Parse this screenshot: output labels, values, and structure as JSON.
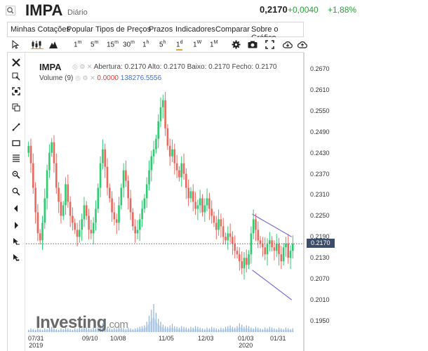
{
  "header": {
    "ticker": "IMPA",
    "period": "Diário",
    "price": "0,2170",
    "change": "+0,0040",
    "change_pct": "+1,88%",
    "change_color": "#27a038"
  },
  "menu": [
    "Minhas Cotações",
    "Popular",
    "Tipos de Preços",
    "Prazos",
    "Indicadores",
    "Comparar",
    "Sobre o Gráfico"
  ],
  "toolbar": {
    "intervals": [
      {
        "num": "1",
        "unit": "m"
      },
      {
        "num": "5",
        "unit": "m"
      },
      {
        "num": "15",
        "unit": "m"
      },
      {
        "num": "30",
        "unit": "m"
      },
      {
        "num": "1",
        "unit": "h"
      },
      {
        "num": "5",
        "unit": "h"
      },
      {
        "num": "1",
        "unit": "d"
      },
      {
        "num": "1",
        "unit": "W"
      },
      {
        "num": "1",
        "unit": "M"
      }
    ],
    "active_interval": "1d"
  },
  "sidebar_icons": [
    "close-icon",
    "crosshair-zoom-icon",
    "fullscreen-icon",
    "copy-icon",
    "trendline-icon",
    "rectangle-icon",
    "fibonacci-icon",
    "measure-icon",
    "zoom-in-icon",
    "zoom-out-icon",
    "arrow-left-icon",
    "arrow-right-icon",
    "cursor-icon",
    "cursor-reset-icon"
  ],
  "legend": {
    "symbol": "IMPA",
    "ohlc": "Abertura: 0.2170  Alto: 0.2170  Baixo: 0.2170  Fecho: 0.2170",
    "volume_label": "Volume (9)",
    "volume_value1": "0.0000",
    "volume_value2": "138276.5556"
  },
  "price_tag": "0.2170",
  "watermark": {
    "brand": "Investing",
    "suffix": ".com"
  },
  "chart_data": {
    "type": "candlestick",
    "y_ticks": [
      "0.2670",
      "0.2610",
      "0.2550",
      "0.2490",
      "0.2430",
      "0.2370",
      "0.2310",
      "0.2250",
      "0.2190",
      "0.2130",
      "0.2070",
      "0.2010",
      "0.1950"
    ],
    "ylim": [
      0.193,
      0.27
    ],
    "x_ticks": [
      {
        "label": "07/31",
        "sub": "2019"
      },
      {
        "label": "09/10",
        "sub": ""
      },
      {
        "label": "10/08",
        "sub": ""
      },
      {
        "label": "11/05",
        "sub": ""
      },
      {
        "label": "12/03",
        "sub": ""
      },
      {
        "label": "01/03",
        "sub": "2020"
      },
      {
        "label": "01/31",
        "sub": ""
      }
    ],
    "last_price": 0.217,
    "up_color": "#2ecc71",
    "down_color": "#e8695f",
    "closes": [
      0.245,
      0.24,
      0.233,
      0.226,
      0.22,
      0.218,
      0.223,
      0.23,
      0.238,
      0.243,
      0.246,
      0.24,
      0.233,
      0.229,
      0.225,
      0.228,
      0.234,
      0.229,
      0.225,
      0.223,
      0.221,
      0.219,
      0.221,
      0.224,
      0.228,
      0.225,
      0.221,
      0.22,
      0.223,
      0.227,
      0.233,
      0.24,
      0.244,
      0.239,
      0.233,
      0.23,
      0.226,
      0.224,
      0.223,
      0.228,
      0.233,
      0.238,
      0.235,
      0.23,
      0.226,
      0.222,
      0.22,
      0.221,
      0.224,
      0.227,
      0.23,
      0.234,
      0.238,
      0.242,
      0.244,
      0.247,
      0.252,
      0.256,
      0.258,
      0.25,
      0.245,
      0.242,
      0.244,
      0.24,
      0.238,
      0.236,
      0.24,
      0.237,
      0.233,
      0.23,
      0.232,
      0.229,
      0.227,
      0.228,
      0.23,
      0.226,
      0.228,
      0.23,
      0.227,
      0.225,
      0.223,
      0.221,
      0.224,
      0.222,
      0.219,
      0.218,
      0.22,
      0.219,
      0.217,
      0.215,
      0.214,
      0.212,
      0.21,
      0.213,
      0.211,
      0.214,
      0.22,
      0.224,
      0.221,
      0.218,
      0.217,
      0.216,
      0.214,
      0.217,
      0.218,
      0.216,
      0.215,
      0.217,
      0.214,
      0.212,
      0.216,
      0.217,
      0.213,
      0.215,
      0.217
    ],
    "volumes": [
      3,
      5,
      4,
      3,
      6,
      4,
      3,
      5,
      4,
      6,
      7,
      5,
      4,
      3,
      5,
      4,
      6,
      5,
      4,
      3,
      5,
      4,
      6,
      5,
      7,
      6,
      5,
      4,
      6,
      5,
      7,
      9,
      12,
      8,
      6,
      5,
      4,
      6,
      5,
      7,
      6,
      5,
      4,
      6,
      5,
      4,
      5,
      6,
      7,
      8,
      9,
      14,
      22,
      30,
      38,
      26,
      18,
      14,
      10,
      8,
      7,
      9,
      11,
      8,
      7,
      6,
      8,
      7,
      6,
      5,
      7,
      6,
      8,
      7,
      6,
      5,
      4,
      6,
      5,
      7,
      6,
      5,
      4,
      6,
      5,
      7,
      8,
      9,
      7,
      6,
      8,
      12,
      10,
      7,
      9,
      8,
      6,
      5,
      7,
      6,
      5,
      4,
      6,
      5,
      7,
      6,
      5,
      4,
      6,
      5,
      4,
      6,
      5,
      4,
      5
    ]
  }
}
